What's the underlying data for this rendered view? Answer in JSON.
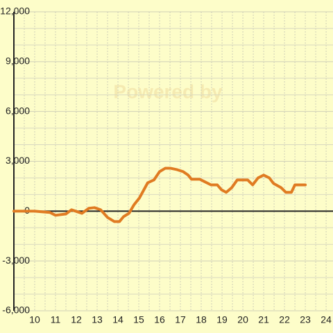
{
  "chart_data": {
    "type": "line",
    "watermark": "Powered by",
    "x": [
      9,
      10,
      10.73,
      11,
      11.5,
      11.77,
      12.27,
      12.6,
      12.87,
      13.17,
      13.5,
      13.83,
      14.07,
      14.27,
      14.53,
      14.77,
      15.03,
      15.43,
      15.73,
      16,
      16.27,
      16.53,
      16.83,
      17.13,
      17.37,
      17.53,
      17.93,
      18.2,
      18.47,
      18.77,
      18.97,
      19.2,
      19.47,
      19.73,
      20.23,
      20.47,
      20.73,
      21,
      21.27,
      21.47,
      21.83,
      22.07,
      22.33,
      22.5,
      23
    ],
    "series": [
      {
        "name": "value",
        "color": "#e07b22",
        "values": [
          0,
          0,
          -80,
          -250,
          -170,
          80,
          -130,
          170,
          210,
          80,
          -380,
          -630,
          -630,
          -330,
          -130,
          380,
          790,
          1710,
          1880,
          2380,
          2580,
          2580,
          2500,
          2380,
          2170,
          1920,
          1920,
          1750,
          1580,
          1580,
          1290,
          1130,
          1420,
          1880,
          1880,
          1580,
          2000,
          2170,
          2000,
          1670,
          1420,
          1130,
          1130,
          1580,
          1580
        ]
      }
    ],
    "xlim": [
      9,
      24.33
    ],
    "ylim": [
      -6000,
      12000
    ],
    "xticks": [
      10,
      11,
      12,
      13,
      14,
      15,
      16,
      17,
      18,
      19,
      20,
      21,
      22,
      23,
      24
    ],
    "xminorticks": [
      9.5,
      10.5,
      11.5,
      12.5,
      13.5,
      14.5,
      15.5,
      16.5,
      17.5,
      18.5,
      19.5,
      20.5,
      21.5,
      22.5,
      23.5
    ],
    "yticks": [
      {
        "value": -6000,
        "label": "-6,000"
      },
      {
        "value": -3000,
        "label": "-3,000"
      },
      0,
      {
        "value": 3000,
        "label": "3,000"
      },
      {
        "value": 6000,
        "label": "6,000"
      },
      {
        "value": 9000,
        "label": "9,000"
      },
      {
        "value": 12000,
        "label": "12,000"
      }
    ],
    "yminorticks": [
      -5000,
      -4000,
      -2000,
      -1000,
      1000,
      2000,
      4000,
      5000,
      7000,
      8000,
      10000,
      11000
    ],
    "grid": true
  }
}
